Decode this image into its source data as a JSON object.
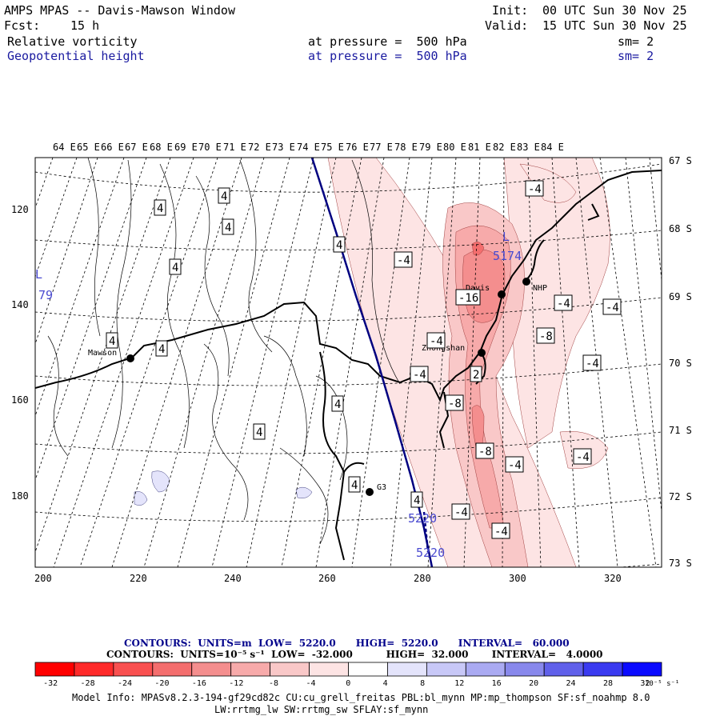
{
  "header": {
    "app_title": "AMPS MPAS -- Davis-Mawson Window",
    "init_label": "Init:",
    "init_time": "00 UTC Sun 30 Nov 25",
    "fcst_label": "Fcst:",
    "fcst_value": "15 h",
    "valid_label": "Valid:",
    "valid_time": "15 UTC Sun 30 Nov 25",
    "field1": "Relative vorticity",
    "field1_level": "at pressure =  500 hPa",
    "field1_sm": "sm= 2",
    "field2": "Geopotential height",
    "field2_level": "at pressure =  500 hPa",
    "field2_sm": "sm= 2"
  },
  "colors": {
    "vort_pos": "#e83a3a",
    "vort_neg": "#4040e0",
    "height": "#000080",
    "coast": "#000000",
    "grid": "#000000"
  },
  "map": {
    "top_lon_labels": [
      "64 E",
      "65 E",
      "66 E",
      "67 E",
      "68 E",
      "69 E",
      "70 E",
      "71 E",
      "72 E",
      "73 E",
      "74 E",
      "75 E",
      "76 E",
      "77 E",
      "78 E",
      "79 E",
      "80 E",
      "81 E",
      "82 E",
      "83 E",
      "84 E"
    ],
    "right_lat_labels": [
      "67 S",
      "68 S",
      "69 S",
      "70 S",
      "71 S",
      "72 S",
      "73 S"
    ],
    "bottom_axis_labels": [
      "200",
      "220",
      "240",
      "260",
      "280",
      "300",
      "320"
    ],
    "left_axis_labels": [
      "120",
      "140",
      "160",
      "180"
    ],
    "stations": [
      {
        "name": "Mawson"
      },
      {
        "name": "Davis"
      },
      {
        "name": "Zhongshan"
      },
      {
        "name": "NHP"
      },
      {
        "name": "G3"
      }
    ],
    "vort_labels": [
      "4",
      "4",
      "4",
      "4",
      "4",
      "4",
      "4",
      "4",
      "4",
      "4",
      "4",
      "-4",
      "-4",
      "-4",
      "-4",
      "-4",
      "-4",
      "-4",
      "-4",
      "-4",
      "-4",
      "-4",
      "-16",
      "-8",
      "-8",
      "-8",
      "2"
    ],
    "height_labels": [
      "L",
      "5174",
      "5220",
      "5220",
      "L",
      "79"
    ]
  },
  "contour_info": {
    "line1": "CONTOURS:  UNITS=m  LOW=  5220.0      HIGH=  5220.0      INTERVAL=   60.000",
    "line2": "CONTOURS:  UNITS=10⁻⁵ s⁻¹  LOW=  -32.000          HIGH=  32.000       INTERVAL=   4.0000"
  },
  "colorbar": {
    "ticks": [
      "-32",
      "-28",
      "-24",
      "-20",
      "-16",
      "-12",
      "-8",
      "-4",
      "0",
      "4",
      "8",
      "12",
      "16",
      "20",
      "24",
      "28",
      "32"
    ],
    "colors": [
      "#ff0000",
      "#ff2a2a",
      "#f95050",
      "#f46e6e",
      "#f48e8e",
      "#f7aaaa",
      "#f9c8c8",
      "#fde4e4",
      "#ffffff",
      "#ffffff",
      "#e4e4fb",
      "#c8c8f7",
      "#aaaaf2",
      "#8888ec",
      "#6060ea",
      "#3a3af0",
      "#0a0aff"
    ],
    "units": "10⁻⁵ s⁻¹"
  },
  "footer": {
    "line1": "Model Info: MPASv8.2.3-194-gf29cd82c CU:cu_grell_freitas PBL:bl_mynn MP:mp_thompson SF:sf_noahmp 8.0",
    "line2": "LW:rrtmg_lw SW:rrtmg_sw SFLAY:sf_mynn"
  }
}
